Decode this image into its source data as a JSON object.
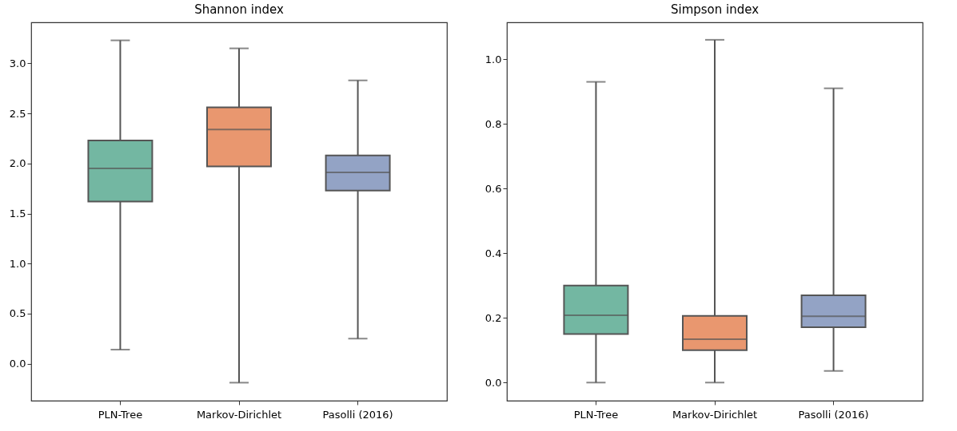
{
  "chart_data": [
    {
      "type": "box",
      "title": "Shannon index",
      "categories": [
        "PLN-Tree",
        "Markov-Dirichlet",
        "Pasolli (2016)"
      ],
      "colors": [
        "#73b7a2",
        "#e9976f",
        "#93a3c5"
      ],
      "boxes": [
        {
          "low": 0.14,
          "q1": 1.62,
          "median": 1.95,
          "q3": 2.23,
          "high": 3.23
        },
        {
          "low": -0.19,
          "q1": 1.97,
          "median": 2.34,
          "q3": 2.56,
          "high": 3.15
        },
        {
          "low": 0.25,
          "q1": 1.73,
          "median": 1.91,
          "q3": 2.08,
          "high": 2.83
        }
      ],
      "ylim": [
        -0.37,
        3.41
      ],
      "yticks": [
        {
          "value": 0,
          "label": "0.0"
        },
        0.5,
        {
          "value": 1,
          "label": "1.0"
        },
        1.5,
        {
          "value": 2,
          "label": "2.0"
        },
        2.5,
        {
          "value": 3,
          "label": "3.0"
        }
      ],
      "grid": false
    },
    {
      "type": "box",
      "title": "Simpson index",
      "categories": [
        "PLN-Tree",
        "Markov-Dirichlet",
        "Pasolli (2016)"
      ],
      "colors": [
        "#73b7a2",
        "#e9976f",
        "#93a3c5"
      ],
      "boxes": [
        {
          "low": 0.0,
          "q1": 0.15,
          "median": 0.208,
          "q3": 0.3,
          "high": 0.93
        },
        {
          "low": 0.0,
          "q1": 0.1,
          "median": 0.134,
          "q3": 0.206,
          "high": 1.06
        },
        {
          "low": 0.036,
          "q1": 0.171,
          "median": 0.205,
          "q3": 0.27,
          "high": 0.91
        }
      ],
      "ylim": [
        -0.056,
        1.114
      ],
      "yticks": [
        {
          "value": 0,
          "label": "0.0"
        },
        0.2,
        0.4,
        0.6,
        0.8,
        {
          "value": 1,
          "label": "1.0"
        }
      ],
      "grid": false
    }
  ]
}
